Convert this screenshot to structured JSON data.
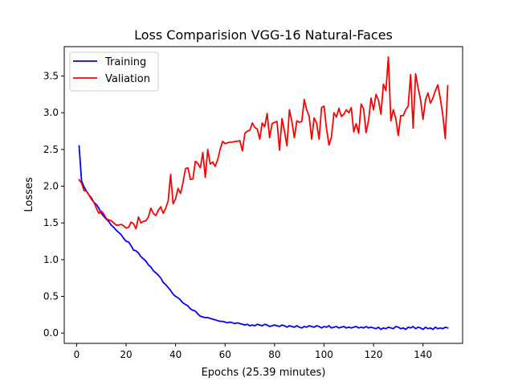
{
  "chart_data": {
    "type": "line",
    "title": "Loss Comparision VGG-16 Natural-Faces",
    "xlabel": "Epochs (25.39 minutes)",
    "ylabel": "Losses",
    "xlim": [
      -5,
      156
    ],
    "ylim": [
      -0.14,
      3.9
    ],
    "xticks": [
      0,
      20,
      40,
      60,
      80,
      100,
      120,
      140
    ],
    "xtick_labels": [
      "0",
      "20",
      "40",
      "60",
      "80",
      "100",
      "120",
      "140"
    ],
    "yticks": [
      0.0,
      0.5,
      1.0,
      1.5,
      2.0,
      2.5,
      3.0,
      3.5
    ],
    "ytick_labels": [
      "0.0",
      "0.5",
      "1.0",
      "1.5",
      "2.0",
      "2.5",
      "3.0",
      "3.5"
    ],
    "grid": false,
    "legend_position": "top-left",
    "series": [
      {
        "name": "Training",
        "color": "#0000ff",
        "points": [
          [
            1,
            2.55
          ],
          [
            2,
            2.07
          ],
          [
            3,
            1.99
          ],
          [
            4,
            1.93
          ],
          [
            5,
            1.88
          ],
          [
            6,
            1.84
          ],
          [
            7,
            1.78
          ],
          [
            8,
            1.75
          ],
          [
            9,
            1.7
          ],
          [
            10,
            1.63
          ],
          [
            11,
            1.59
          ],
          [
            12,
            1.55
          ],
          [
            13,
            1.52
          ],
          [
            14,
            1.47
          ],
          [
            15,
            1.44
          ],
          [
            16,
            1.4
          ],
          [
            17,
            1.37
          ],
          [
            18,
            1.34
          ],
          [
            19,
            1.29
          ],
          [
            20,
            1.25
          ],
          [
            21,
            1.24
          ],
          [
            22,
            1.19
          ],
          [
            23,
            1.13
          ],
          [
            24,
            1.12
          ],
          [
            25,
            1.09
          ],
          [
            26,
            1.04
          ],
          [
            27,
            1.01
          ],
          [
            28,
            0.98
          ],
          [
            29,
            0.93
          ],
          [
            30,
            0.9
          ],
          [
            31,
            0.85
          ],
          [
            32,
            0.82
          ],
          [
            33,
            0.79
          ],
          [
            34,
            0.75
          ],
          [
            35,
            0.69
          ],
          [
            36,
            0.66
          ],
          [
            37,
            0.62
          ],
          [
            38,
            0.58
          ],
          [
            39,
            0.53
          ],
          [
            40,
            0.5
          ],
          [
            41,
            0.48
          ],
          [
            42,
            0.45
          ],
          [
            43,
            0.41
          ],
          [
            44,
            0.39
          ],
          [
            45,
            0.37
          ],
          [
            46,
            0.33
          ],
          [
            47,
            0.31
          ],
          [
            48,
            0.3
          ],
          [
            49,
            0.26
          ],
          [
            50,
            0.23
          ],
          [
            51,
            0.22
          ],
          [
            52,
            0.21
          ],
          [
            53,
            0.21
          ],
          [
            54,
            0.2
          ],
          [
            55,
            0.19
          ],
          [
            56,
            0.18
          ],
          [
            57,
            0.17
          ],
          [
            58,
            0.16
          ],
          [
            59,
            0.16
          ],
          [
            60,
            0.15
          ],
          [
            61,
            0.14
          ],
          [
            62,
            0.15
          ],
          [
            63,
            0.14
          ],
          [
            64,
            0.13
          ],
          [
            65,
            0.14
          ],
          [
            66,
            0.13
          ],
          [
            67,
            0.12
          ],
          [
            68,
            0.11
          ],
          [
            69,
            0.12
          ],
          [
            70,
            0.1
          ],
          [
            71,
            0.11
          ],
          [
            72,
            0.1
          ],
          [
            73,
            0.12
          ],
          [
            74,
            0.11
          ],
          [
            75,
            0.1
          ],
          [
            76,
            0.12
          ],
          [
            77,
            0.11
          ],
          [
            78,
            0.09
          ],
          [
            79,
            0.1
          ],
          [
            80,
            0.11
          ],
          [
            81,
            0.1
          ],
          [
            82,
            0.09
          ],
          [
            83,
            0.11
          ],
          [
            84,
            0.1
          ],
          [
            85,
            0.08
          ],
          [
            86,
            0.1
          ],
          [
            87,
            0.09
          ],
          [
            88,
            0.08
          ],
          [
            89,
            0.1
          ],
          [
            90,
            0.08
          ],
          [
            91,
            0.07
          ],
          [
            92,
            0.09
          ],
          [
            93,
            0.08
          ],
          [
            94,
            0.1
          ],
          [
            95,
            0.09
          ],
          [
            96,
            0.08
          ],
          [
            97,
            0.1
          ],
          [
            98,
            0.09
          ],
          [
            99,
            0.07
          ],
          [
            100,
            0.09
          ],
          [
            101,
            0.08
          ],
          [
            102,
            0.1
          ],
          [
            103,
            0.07
          ],
          [
            104,
            0.08
          ],
          [
            105,
            0.09
          ],
          [
            106,
            0.07
          ],
          [
            107,
            0.08
          ],
          [
            108,
            0.09
          ],
          [
            109,
            0.07
          ],
          [
            110,
            0.08
          ],
          [
            111,
            0.07
          ],
          [
            112,
            0.08
          ],
          [
            113,
            0.09
          ],
          [
            114,
            0.07
          ],
          [
            115,
            0.08
          ],
          [
            116,
            0.07
          ],
          [
            117,
            0.09
          ],
          [
            118,
            0.07
          ],
          [
            119,
            0.08
          ],
          [
            120,
            0.07
          ],
          [
            121,
            0.06
          ],
          [
            122,
            0.08
          ],
          [
            123,
            0.05
          ],
          [
            124,
            0.07
          ],
          [
            125,
            0.06
          ],
          [
            126,
            0.08
          ],
          [
            127,
            0.07
          ],
          [
            128,
            0.06
          ],
          [
            129,
            0.09
          ],
          [
            130,
            0.08
          ],
          [
            131,
            0.06
          ],
          [
            132,
            0.07
          ],
          [
            133,
            0.05
          ],
          [
            134,
            0.08
          ],
          [
            135,
            0.07
          ],
          [
            136,
            0.09
          ],
          [
            137,
            0.06
          ],
          [
            138,
            0.08
          ],
          [
            139,
            0.07
          ],
          [
            140,
            0.05
          ],
          [
            141,
            0.08
          ],
          [
            142,
            0.06
          ],
          [
            143,
            0.07
          ],
          [
            144,
            0.05
          ],
          [
            145,
            0.08
          ],
          [
            146,
            0.06
          ],
          [
            147,
            0.07
          ],
          [
            148,
            0.06
          ],
          [
            149,
            0.08
          ],
          [
            150,
            0.07
          ]
        ]
      },
      {
        "name": "Valiation",
        "color": "#ff0000",
        "points": [
          [
            1,
            2.09
          ],
          [
            2,
            2.04
          ],
          [
            3,
            1.94
          ],
          [
            4,
            1.93
          ],
          [
            5,
            1.88
          ],
          [
            6,
            1.82
          ],
          [
            7,
            1.78
          ],
          [
            8,
            1.7
          ],
          [
            9,
            1.63
          ],
          [
            10,
            1.66
          ],
          [
            11,
            1.62
          ],
          [
            12,
            1.56
          ],
          [
            13,
            1.54
          ],
          [
            14,
            1.53
          ],
          [
            15,
            1.5
          ],
          [
            16,
            1.47
          ],
          [
            17,
            1.47
          ],
          [
            18,
            1.48
          ],
          [
            19,
            1.46
          ],
          [
            20,
            1.43
          ],
          [
            21,
            1.44
          ],
          [
            22,
            1.51
          ],
          [
            23,
            1.49
          ],
          [
            24,
            1.42
          ],
          [
            25,
            1.58
          ],
          [
            26,
            1.5
          ],
          [
            27,
            1.52
          ],
          [
            28,
            1.53
          ],
          [
            29,
            1.58
          ],
          [
            30,
            1.7
          ],
          [
            31,
            1.63
          ],
          [
            32,
            1.6
          ],
          [
            33,
            1.67
          ],
          [
            34,
            1.72
          ],
          [
            35,
            1.63
          ],
          [
            36,
            1.7
          ],
          [
            37,
            1.8
          ],
          [
            38,
            2.16
          ],
          [
            39,
            1.76
          ],
          [
            40,
            1.83
          ],
          [
            41,
            1.97
          ],
          [
            42,
            1.9
          ],
          [
            43,
            2.05
          ],
          [
            44,
            2.24
          ],
          [
            45,
            2.25
          ],
          [
            46,
            2.09
          ],
          [
            47,
            2.1
          ],
          [
            48,
            2.34
          ],
          [
            49,
            2.31
          ],
          [
            50,
            2.25
          ],
          [
            51,
            2.46
          ],
          [
            52,
            2.12
          ],
          [
            53,
            2.5
          ],
          [
            54,
            2.3
          ],
          [
            55,
            2.33
          ],
          [
            56,
            2.27
          ],
          [
            57,
            2.36
          ],
          [
            58,
            2.5
          ],
          [
            59,
            2.61
          ],
          [
            60,
            2.58
          ],
          [
            61,
            2.59
          ],
          [
            62,
            2.6
          ],
          [
            63,
            2.6
          ],
          [
            64,
            2.61
          ],
          [
            65,
            2.61
          ],
          [
            66,
            2.62
          ],
          [
            67,
            2.48
          ],
          [
            68,
            2.72
          ],
          [
            69,
            2.75
          ],
          [
            70,
            2.76
          ],
          [
            71,
            2.86
          ],
          [
            72,
            2.8
          ],
          [
            73,
            2.78
          ],
          [
            74,
            2.64
          ],
          [
            75,
            2.86
          ],
          [
            76,
            2.81
          ],
          [
            77,
            2.99
          ],
          [
            78,
            2.66
          ],
          [
            79,
            2.85
          ],
          [
            80,
            2.87
          ],
          [
            81,
            2.88
          ],
          [
            82,
            2.49
          ],
          [
            83,
            2.92
          ],
          [
            84,
            2.75
          ],
          [
            85,
            2.55
          ],
          [
            86,
            3.04
          ],
          [
            87,
            2.88
          ],
          [
            88,
            2.66
          ],
          [
            89,
            2.89
          ],
          [
            90,
            2.87
          ],
          [
            91,
            2.88
          ],
          [
            92,
            3.18
          ],
          [
            93,
            3.04
          ],
          [
            94,
            2.95
          ],
          [
            95,
            2.64
          ],
          [
            96,
            2.93
          ],
          [
            97,
            2.86
          ],
          [
            98,
            2.64
          ],
          [
            99,
            3.07
          ],
          [
            100,
            3.09
          ],
          [
            101,
            2.78
          ],
          [
            102,
            2.56
          ],
          [
            103,
            2.67
          ],
          [
            104,
            3.0
          ],
          [
            105,
            2.94
          ],
          [
            106,
            3.06
          ],
          [
            107,
            2.95
          ],
          [
            108,
            2.98
          ],
          [
            109,
            3.04
          ],
          [
            110,
            3.0
          ],
          [
            111,
            3.07
          ],
          [
            112,
            2.74
          ],
          [
            113,
            2.85
          ],
          [
            114,
            2.72
          ],
          [
            115,
            3.12
          ],
          [
            116,
            3.05
          ],
          [
            117,
            2.73
          ],
          [
            118,
            2.9
          ],
          [
            119,
            3.2
          ],
          [
            120,
            3.04
          ],
          [
            121,
            3.25
          ],
          [
            122,
            3.17
          ],
          [
            123,
            2.98
          ],
          [
            124,
            3.39
          ],
          [
            125,
            3.3
          ],
          [
            126,
            3.76
          ],
          [
            127,
            2.89
          ],
          [
            128,
            3.04
          ],
          [
            129,
            2.92
          ],
          [
            130,
            2.69
          ],
          [
            131,
            2.96
          ],
          [
            132,
            2.96
          ],
          [
            133,
            3.04
          ],
          [
            134,
            3.09
          ],
          [
            135,
            3.52
          ],
          [
            136,
            2.79
          ],
          [
            137,
            3.53
          ],
          [
            138,
            3.34
          ],
          [
            139,
            3.18
          ],
          [
            140,
            2.91
          ],
          [
            141,
            3.17
          ],
          [
            142,
            3.27
          ],
          [
            143,
            3.13
          ],
          [
            144,
            3.2
          ],
          [
            145,
            3.3
          ],
          [
            146,
            3.38
          ],
          [
            147,
            3.19
          ],
          [
            148,
            2.97
          ],
          [
            149,
            2.65
          ],
          [
            150,
            3.37
          ]
        ]
      }
    ]
  }
}
